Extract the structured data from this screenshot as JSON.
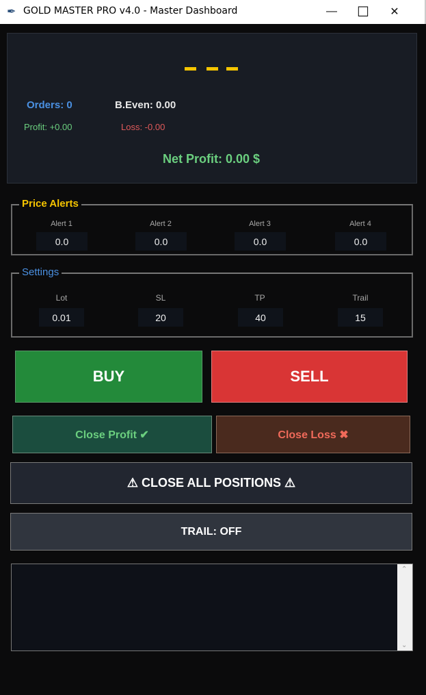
{
  "window": {
    "title": "GOLD MASTER PRO v4.0 - Master Dashboard",
    "minimize": "—",
    "maximize": "☐",
    "close": "✕"
  },
  "info": {
    "price_placeholder": "- - -",
    "orders": "Orders: 0",
    "breakeven": "B.Even: 0.00",
    "profit": "Profit: +0.00",
    "loss": "Loss: -0.00",
    "net_profit": "Net Profit: 0.00 $"
  },
  "alerts": {
    "title": "Price Alerts",
    "items": [
      {
        "label": "Alert 1",
        "value": "0.0"
      },
      {
        "label": "Alert 2",
        "value": "0.0"
      },
      {
        "label": "Alert 3",
        "value": "0.0"
      },
      {
        "label": "Alert 4",
        "value": "0.0"
      }
    ]
  },
  "settings": {
    "title": "Settings",
    "items": [
      {
        "label": "Lot",
        "value": "0.01"
      },
      {
        "label": "SL",
        "value": "20"
      },
      {
        "label": "TP",
        "value": "40"
      },
      {
        "label": "Trail",
        "value": "15"
      }
    ]
  },
  "buttons": {
    "buy": "BUY",
    "sell": "SELL",
    "close_profit": "Close Profit ✔",
    "close_loss": "Close Loss ✖",
    "close_all": "⚠ CLOSE ALL POSITIONS ⚠",
    "trail": "TRAIL: OFF"
  },
  "log": {
    "text": ""
  },
  "colors": {
    "buy": "#238a3a",
    "sell": "#d93535",
    "gold": "#f5c400",
    "blue": "#4a90e2",
    "green": "#6bcf7f",
    "red": "#e05a5a"
  }
}
